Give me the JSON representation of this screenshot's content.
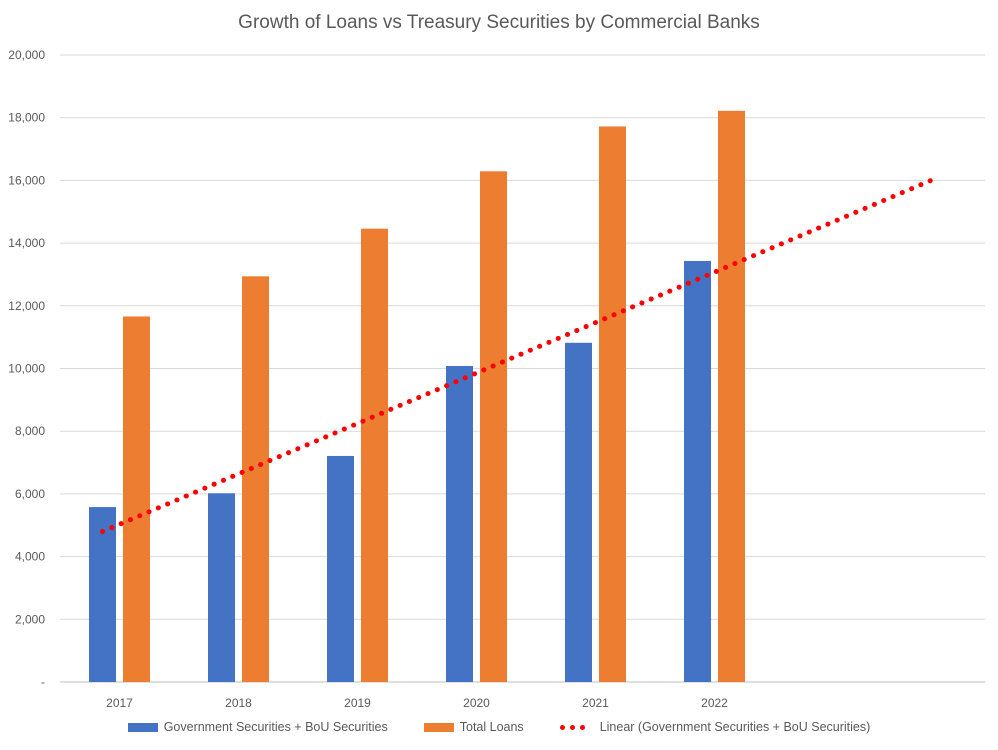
{
  "chart_data": {
    "type": "bar",
    "title": "Growth of Loans vs Treasury Securities by Commercial Banks",
    "xlabel": "",
    "ylabel": "",
    "categories": [
      "2017",
      "2018",
      "2019",
      "2020",
      "2021",
      "2022"
    ],
    "y_ticks": [
      "-",
      "2,000",
      "4,000",
      "6,000",
      "8,000",
      "10,000",
      "12,000",
      "14,000",
      "16,000",
      "18,000",
      "20,000"
    ],
    "ylim": [
      0,
      20000
    ],
    "grid": true,
    "legend_position": "bottom",
    "series": [
      {
        "name": "Government Securities + BoU Securities",
        "values": [
          5580,
          6020,
          7210,
          10080,
          10820,
          13430
        ],
        "color": "#4472c4"
      },
      {
        "name": "Total Loans",
        "values": [
          11660,
          12940,
          14460,
          16290,
          17720,
          18220
        ],
        "color": "#ed7d31"
      }
    ],
    "trendline": {
      "name": "Linear (Government Securities + BoU Securities)",
      "type": "linear",
      "of_series": "Government Securities + BoU Securities",
      "start": 4800,
      "end": 16060,
      "color": "#ff0000",
      "style": "dotted"
    }
  }
}
